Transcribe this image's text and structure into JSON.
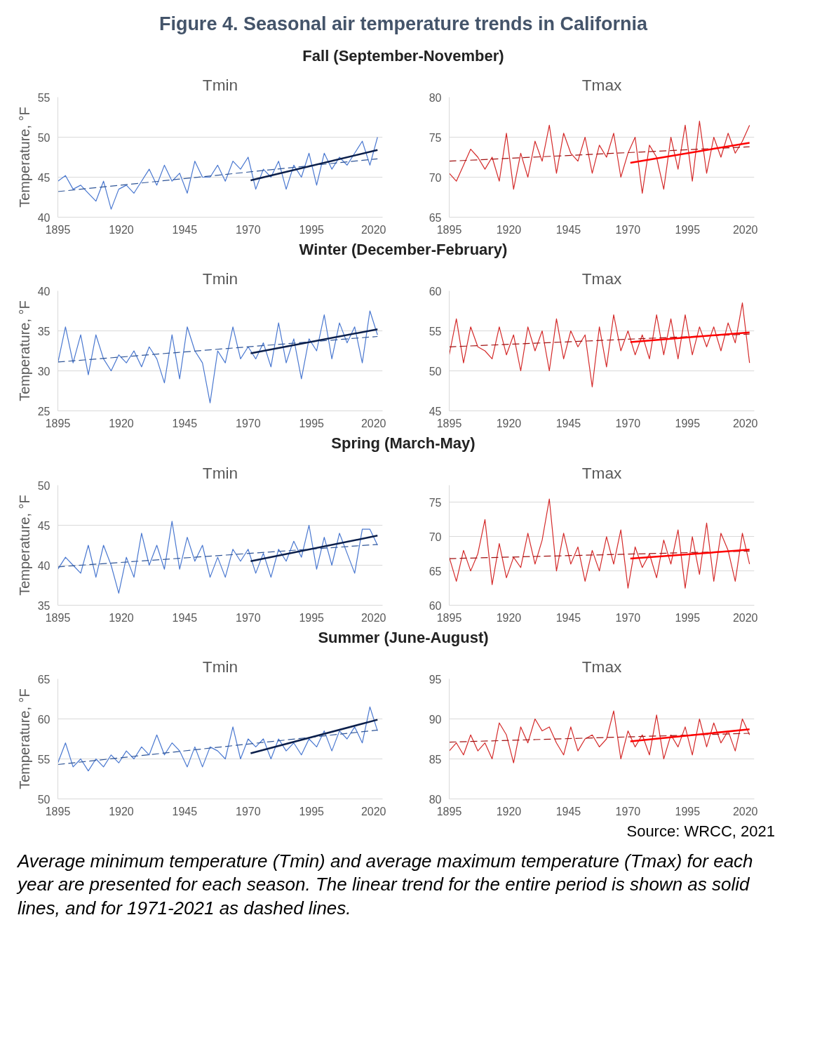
{
  "chart_data": [
    {
      "type": "line",
      "title": "Fall (September-November)",
      "subtitle": "Tmin",
      "ylabel": "Temperature, °F",
      "annotations": [
        "Figure 4. Seasonal air temperature trends in California"
      ],
      "xlim": [
        1895,
        2023
      ],
      "xticks": [
        1895,
        1920,
        1945,
        1970,
        1995,
        2020
      ],
      "ylim": [
        40,
        55
      ],
      "yticks": [
        40,
        45,
        50,
        55
      ],
      "grid": "y",
      "x": [
        1895,
        1898,
        1901,
        1904,
        1907,
        1910,
        1913,
        1916,
        1919,
        1922,
        1925,
        1928,
        1931,
        1934,
        1937,
        1940,
        1943,
        1946,
        1949,
        1952,
        1955,
        1958,
        1961,
        1964,
        1967,
        1970,
        1973,
        1976,
        1979,
        1982,
        1985,
        1988,
        1991,
        1994,
        1997,
        2000,
        2003,
        2006,
        2009,
        2012,
        2015,
        2018,
        2021
      ],
      "series": [
        {
          "type": "line",
          "color": "#4a78d0",
          "line_style": "solid",
          "values": [
            44.5,
            45.2,
            43.5,
            44.0,
            43.0,
            42.0,
            44.5,
            41.0,
            43.5,
            44.0,
            43.0,
            44.5,
            46.0,
            44.0,
            46.5,
            44.5,
            45.5,
            43.0,
            47.0,
            45.0,
            45.0,
            46.5,
            44.5,
            47.0,
            46.0,
            47.5,
            43.5,
            46.0,
            45.0,
            47.0,
            43.5,
            46.5,
            45.0,
            48.0,
            44.0,
            48.0,
            46.0,
            47.5,
            46.5,
            48.0,
            49.5,
            46.5,
            50.0
          ]
        },
        {
          "type": "line",
          "color": "#2f5597",
          "line_style": "dashed",
          "x": [
            1895,
            2021
          ],
          "values": [
            43.2,
            47.3
          ]
        },
        {
          "type": "line",
          "color": "#0b1f4b",
          "line_style": "solid",
          "x": [
            1971,
            2021
          ],
          "values": [
            44.6,
            48.4
          ]
        }
      ]
    },
    {
      "type": "line",
      "subtitle": "Tmax",
      "xlim": [
        1895,
        2023
      ],
      "xticks": [
        1895,
        1920,
        1945,
        1970,
        1995,
        2020
      ],
      "ylim": [
        65,
        80
      ],
      "yticks": [
        65,
        70,
        75,
        80
      ],
      "grid": "y",
      "x": [
        1895,
        1898,
        1901,
        1904,
        1907,
        1910,
        1913,
        1916,
        1919,
        1922,
        1925,
        1928,
        1931,
        1934,
        1937,
        1940,
        1943,
        1946,
        1949,
        1952,
        1955,
        1958,
        1961,
        1964,
        1967,
        1970,
        1973,
        1976,
        1979,
        1982,
        1985,
        1988,
        1991,
        1994,
        1997,
        2000,
        2003,
        2006,
        2009,
        2012,
        2015,
        2018,
        2021
      ],
      "series": [
        {
          "type": "line",
          "color": "#d42a2a",
          "line_style": "solid",
          "values": [
            70.5,
            69.5,
            71.5,
            73.5,
            72.5,
            71.0,
            72.5,
            69.5,
            75.5,
            68.5,
            73.0,
            70.0,
            74.5,
            72.0,
            76.5,
            70.5,
            75.5,
            73.0,
            72.0,
            75.0,
            70.5,
            74.0,
            72.5,
            75.5,
            70.0,
            73.0,
            75.0,
            68.0,
            74.0,
            72.5,
            68.5,
            75.0,
            71.0,
            76.5,
            69.5,
            77.0,
            70.5,
            75.0,
            72.5,
            75.5,
            73.0,
            74.5,
            76.5
          ]
        },
        {
          "type": "line",
          "color": "#a01010",
          "line_style": "dashed",
          "x": [
            1895,
            2021
          ],
          "values": [
            72.0,
            73.8
          ]
        },
        {
          "type": "line",
          "color": "#ff0000",
          "line_style": "solid",
          "x": [
            1971,
            2021
          ],
          "values": [
            71.8,
            74.3
          ]
        }
      ]
    },
    {
      "type": "line",
      "title": "Winter (December-February)",
      "subtitle": "Tmin",
      "ylabel": "Temperature, °F",
      "xlim": [
        1895,
        2023
      ],
      "xticks": [
        1895,
        1920,
        1945,
        1970,
        1995,
        2020
      ],
      "ylim": [
        25,
        40
      ],
      "yticks": [
        25,
        30,
        35,
        40
      ],
      "grid": "y",
      "x": [
        1895,
        1898,
        1901,
        1904,
        1907,
        1910,
        1913,
        1916,
        1919,
        1922,
        1925,
        1928,
        1931,
        1934,
        1937,
        1940,
        1943,
        1946,
        1949,
        1952,
        1955,
        1958,
        1961,
        1964,
        1967,
        1970,
        1973,
        1976,
        1979,
        1982,
        1985,
        1988,
        1991,
        1994,
        1997,
        2000,
        2003,
        2006,
        2009,
        2012,
        2015,
        2018,
        2021
      ],
      "series": [
        {
          "type": "line",
          "color": "#4a78d0",
          "line_style": "solid",
          "values": [
            31.0,
            35.5,
            31.0,
            34.5,
            29.5,
            34.5,
            31.5,
            30.0,
            32.0,
            31.0,
            32.5,
            30.5,
            33.0,
            31.5,
            28.5,
            34.5,
            29.0,
            35.5,
            32.5,
            31.0,
            26.0,
            32.5,
            31.0,
            35.5,
            31.5,
            33.0,
            31.5,
            33.5,
            30.5,
            36.0,
            31.0,
            34.0,
            29.0,
            34.0,
            32.5,
            37.0,
            31.5,
            36.0,
            33.5,
            35.5,
            31.0,
            37.5,
            34.5
          ]
        },
        {
          "type": "line",
          "color": "#2f5597",
          "line_style": "dashed",
          "x": [
            1895,
            2021
          ],
          "values": [
            31.1,
            34.3
          ]
        },
        {
          "type": "line",
          "color": "#0b1f4b",
          "line_style": "solid",
          "x": [
            1971,
            2021
          ],
          "values": [
            32.2,
            35.2
          ]
        }
      ]
    },
    {
      "type": "line",
      "subtitle": "Tmax",
      "xlim": [
        1895,
        2023
      ],
      "xticks": [
        1895,
        1920,
        1945,
        1970,
        1995,
        2020
      ],
      "ylim": [
        45,
        60
      ],
      "yticks": [
        45,
        50,
        55,
        60
      ],
      "grid": "y",
      "x": [
        1895,
        1898,
        1901,
        1904,
        1907,
        1910,
        1913,
        1916,
        1919,
        1922,
        1925,
        1928,
        1931,
        1934,
        1937,
        1940,
        1943,
        1946,
        1949,
        1952,
        1955,
        1958,
        1961,
        1964,
        1967,
        1970,
        1973,
        1976,
        1979,
        1982,
        1985,
        1988,
        1991,
        1994,
        1997,
        2000,
        2003,
        2006,
        2009,
        2012,
        2015,
        2018,
        2021
      ],
      "series": [
        {
          "type": "line",
          "color": "#d42a2a",
          "line_style": "solid",
          "values": [
            52.0,
            56.5,
            51.0,
            55.5,
            53.0,
            52.5,
            51.5,
            55.5,
            52.0,
            54.5,
            50.0,
            55.5,
            52.5,
            55.0,
            50.0,
            56.5,
            51.5,
            55.0,
            53.0,
            54.5,
            48.0,
            55.5,
            50.5,
            57.0,
            52.5,
            55.0,
            52.0,
            54.5,
            51.5,
            57.0,
            52.0,
            56.5,
            51.5,
            57.0,
            52.0,
            55.5,
            53.0,
            55.5,
            52.5,
            56.0,
            53.5,
            58.5,
            51.0
          ]
        },
        {
          "type": "line",
          "color": "#a01010",
          "line_style": "dashed",
          "x": [
            1895,
            2021
          ],
          "values": [
            53.0,
            54.6
          ]
        },
        {
          "type": "line",
          "color": "#ff0000",
          "line_style": "solid",
          "x": [
            1971,
            2021
          ],
          "values": [
            53.6,
            54.8
          ]
        }
      ]
    },
    {
      "type": "line",
      "title": "Spring (March-May)",
      "subtitle": "Tmin",
      "ylabel": "Temperature, °F",
      "xlim": [
        1895,
        2023
      ],
      "xticks": [
        1895,
        1920,
        1945,
        1970,
        1995,
        2020
      ],
      "ylim": [
        35,
        50
      ],
      "yticks": [
        35,
        40,
        45,
        50
      ],
      "grid": "y",
      "x": [
        1895,
        1898,
        1901,
        1904,
        1907,
        1910,
        1913,
        1916,
        1919,
        1922,
        1925,
        1928,
        1931,
        1934,
        1937,
        1940,
        1943,
        1946,
        1949,
        1952,
        1955,
        1958,
        1961,
        1964,
        1967,
        1970,
        1973,
        1976,
        1979,
        1982,
        1985,
        1988,
        1991,
        1994,
        1997,
        2000,
        2003,
        2006,
        2009,
        2012,
        2015,
        2018,
        2021
      ],
      "series": [
        {
          "type": "line",
          "color": "#4a78d0",
          "line_style": "solid",
          "values": [
            39.5,
            41.0,
            40.0,
            39.0,
            42.5,
            38.5,
            42.5,
            40.0,
            36.5,
            41.0,
            38.5,
            44.0,
            40.0,
            42.5,
            39.5,
            45.5,
            39.5,
            43.5,
            40.5,
            42.5,
            38.5,
            41.0,
            38.5,
            42.0,
            40.5,
            42.0,
            39.0,
            41.5,
            38.5,
            42.0,
            40.5,
            43.0,
            41.0,
            45.0,
            39.5,
            43.5,
            40.0,
            44.0,
            41.5,
            39.0,
            44.5,
            44.5,
            42.5
          ]
        },
        {
          "type": "line",
          "color": "#2f5597",
          "line_style": "dashed",
          "x": [
            1895,
            2021
          ],
          "values": [
            39.8,
            42.6
          ]
        },
        {
          "type": "line",
          "color": "#0b1f4b",
          "line_style": "solid",
          "x": [
            1971,
            2021
          ],
          "values": [
            40.5,
            43.7
          ]
        }
      ]
    },
    {
      "type": "line",
      "subtitle": "Tmax",
      "xlim": [
        1895,
        2023
      ],
      "xticks": [
        1895,
        1920,
        1945,
        1970,
        1995,
        2020
      ],
      "ylim": [
        60,
        77.5
      ],
      "yticks": [
        60,
        65,
        70,
        75
      ],
      "grid": "y",
      "x": [
        1895,
        1898,
        1901,
        1904,
        1907,
        1910,
        1913,
        1916,
        1919,
        1922,
        1925,
        1928,
        1931,
        1934,
        1937,
        1940,
        1943,
        1946,
        1949,
        1952,
        1955,
        1958,
        1961,
        1964,
        1967,
        1970,
        1973,
        1976,
        1979,
        1982,
        1985,
        1988,
        1991,
        1994,
        1997,
        2000,
        2003,
        2006,
        2009,
        2012,
        2015,
        2018,
        2021
      ],
      "series": [
        {
          "type": "line",
          "color": "#d42a2a",
          "line_style": "solid",
          "values": [
            67.0,
            63.5,
            68.0,
            65.0,
            67.5,
            72.5,
            63.0,
            69.0,
            64.0,
            67.0,
            65.5,
            70.5,
            66.0,
            69.5,
            75.5,
            65.0,
            70.5,
            66.0,
            68.5,
            63.5,
            68.0,
            65.0,
            70.0,
            66.0,
            71.0,
            62.5,
            68.5,
            65.5,
            67.5,
            64.0,
            69.5,
            66.0,
            71.0,
            62.5,
            70.0,
            64.5,
            72.0,
            63.5,
            70.5,
            68.0,
            63.5,
            70.5,
            66.0
          ]
        },
        {
          "type": "line",
          "color": "#a01010",
          "line_style": "dashed",
          "x": [
            1895,
            2021
          ],
          "values": [
            66.8,
            67.9
          ]
        },
        {
          "type": "line",
          "color": "#ff0000",
          "line_style": "solid",
          "x": [
            1971,
            2021
          ],
          "values": [
            66.8,
            68.1
          ]
        }
      ]
    },
    {
      "type": "line",
      "title": "Summer (June-August)",
      "subtitle": "Tmin",
      "ylabel": "Temperature, °F",
      "xlim": [
        1895,
        2023
      ],
      "xticks": [
        1895,
        1920,
        1945,
        1970,
        1995,
        2020
      ],
      "ylim": [
        50,
        65
      ],
      "yticks": [
        50,
        55,
        60,
        65
      ],
      "grid": "y",
      "x": [
        1895,
        1898,
        1901,
        1904,
        1907,
        1910,
        1913,
        1916,
        1919,
        1922,
        1925,
        1928,
        1931,
        1934,
        1937,
        1940,
        1943,
        1946,
        1949,
        1952,
        1955,
        1958,
        1961,
        1964,
        1967,
        1970,
        1973,
        1976,
        1979,
        1982,
        1985,
        1988,
        1991,
        1994,
        1997,
        2000,
        2003,
        2006,
        2009,
        2012,
        2015,
        2018,
        2021
      ],
      "series": [
        {
          "type": "line",
          "color": "#4a78d0",
          "line_style": "solid",
          "values": [
            54.5,
            57.0,
            54.0,
            55.0,
            53.5,
            55.0,
            54.0,
            55.5,
            54.5,
            56.0,
            55.0,
            56.5,
            55.5,
            58.0,
            55.5,
            57.0,
            56.0,
            54.0,
            56.5,
            54.0,
            56.5,
            56.0,
            55.0,
            59.0,
            55.0,
            57.5,
            56.5,
            57.5,
            55.0,
            57.5,
            56.0,
            57.0,
            55.5,
            57.5,
            56.5,
            58.5,
            56.0,
            58.5,
            57.5,
            59.0,
            57.0,
            61.5,
            58.5
          ]
        },
        {
          "type": "line",
          "color": "#2f5597",
          "line_style": "dashed",
          "x": [
            1895,
            2021
          ],
          "values": [
            54.3,
            58.6
          ]
        },
        {
          "type": "line",
          "color": "#0b1f4b",
          "line_style": "solid",
          "x": [
            1971,
            2021
          ],
          "values": [
            55.7,
            59.9
          ]
        }
      ]
    },
    {
      "type": "line",
      "subtitle": "Tmax",
      "annotations": [
        "Source: WRCC, 2021",
        "Average minimum temperature (Tmin) and average maximum temperature (Tmax) for each year are presented for each season. The linear trend for the entire period is shown as solid lines, and for 1971-2021 as dashed lines."
      ],
      "xlim": [
        1895,
        2023
      ],
      "xticks": [
        1895,
        1920,
        1945,
        1970,
        1995,
        2020
      ],
      "ylim": [
        80,
        95
      ],
      "yticks": [
        80,
        85,
        90,
        95
      ],
      "grid": "y",
      "x": [
        1895,
        1898,
        1901,
        1904,
        1907,
        1910,
        1913,
        1916,
        1919,
        1922,
        1925,
        1928,
        1931,
        1934,
        1937,
        1940,
        1943,
        1946,
        1949,
        1952,
        1955,
        1958,
        1961,
        1964,
        1967,
        1970,
        1973,
        1976,
        1979,
        1982,
        1985,
        1988,
        1991,
        1994,
        1997,
        2000,
        2003,
        2006,
        2009,
        2012,
        2015,
        2018,
        2021
      ],
      "series": [
        {
          "type": "line",
          "color": "#d42a2a",
          "line_style": "solid",
          "values": [
            86.0,
            87.0,
            85.5,
            88.0,
            86.0,
            87.0,
            85.0,
            89.5,
            88.0,
            84.5,
            89.0,
            87.0,
            90.0,
            88.5,
            89.0,
            87.0,
            85.5,
            89.0,
            86.0,
            87.5,
            88.0,
            86.5,
            87.5,
            91.0,
            85.0,
            88.5,
            86.5,
            88.0,
            85.5,
            90.5,
            85.0,
            88.0,
            86.5,
            89.0,
            85.5,
            90.0,
            86.5,
            89.5,
            87.0,
            88.5,
            86.0,
            90.0,
            88.0
          ]
        },
        {
          "type": "line",
          "color": "#a01010",
          "line_style": "dashed",
          "x": [
            1895,
            2021
          ],
          "values": [
            87.1,
            88.2
          ]
        },
        {
          "type": "line",
          "color": "#ff0000",
          "line_style": "solid",
          "x": [
            1971,
            2021
          ],
          "values": [
            87.2,
            88.7
          ]
        }
      ]
    }
  ]
}
